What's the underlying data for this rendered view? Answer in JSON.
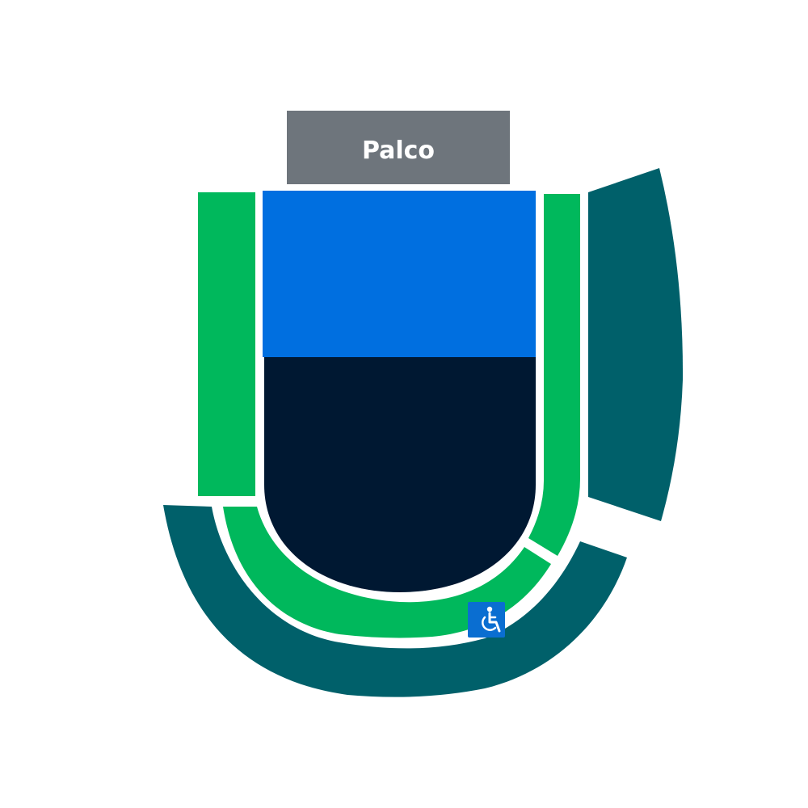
{
  "stage": {
    "label": "Palco"
  },
  "colors": {
    "stage": "#6e757c",
    "front_floor": "#006fe0",
    "rear_floor": "#001832",
    "lower_tier": "#00b85c",
    "upper_tier": "#00606a",
    "accessibility": "#0a6ed1",
    "stage_text": "#ffffff"
  },
  "accessibility": {
    "icon": "wheelchair-icon",
    "glyph": "♿"
  }
}
